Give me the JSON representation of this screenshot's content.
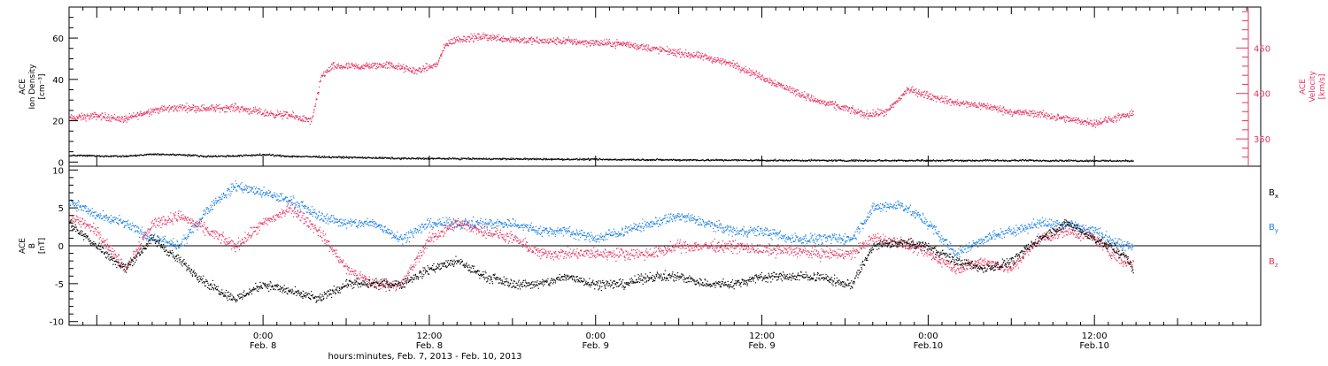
{
  "colors": {
    "bx": "#000000",
    "by": "#1a7ee6",
    "bz": "#e8345e",
    "velocity": "#e8345e",
    "density": "#000000",
    "axis": "#000000"
  },
  "x_axis": {
    "title": "hours:minutes, Feb.  7, 2013 - Feb. 10, 2013",
    "ticks": [
      {
        "hour": 24,
        "time": "0:00",
        "date": "Feb.  8"
      },
      {
        "hour": 36,
        "time": "12:00",
        "date": "Feb.  8"
      },
      {
        "hour": 48,
        "time": "0:00",
        "date": "Feb.  9"
      },
      {
        "hour": 60,
        "time": "12:00",
        "date": "Feb.  9"
      },
      {
        "hour": 72,
        "time": "0:00",
        "date": "Feb.10"
      },
      {
        "hour": 84,
        "time": "12:00",
        "date": "Feb.10"
      }
    ]
  },
  "chart_data": [
    {
      "type": "scatter",
      "panel": "top",
      "x_unit": "hours since Feb. 7 2013 00:00",
      "xlim": [
        10,
        96
      ],
      "data_end_hour": 86.8,
      "ylabel_left": [
        "ACE",
        "Ion Density",
        "[cm⁻³]"
      ],
      "ylim_left": [
        -2,
        75
      ],
      "yticks_left": [
        0,
        20,
        40,
        60
      ],
      "ylabel_right": [
        "ACE",
        "Velocity",
        "[km/s]"
      ],
      "ylim_right": [
        320,
        495
      ],
      "yticks_right": [
        350,
        400,
        450
      ],
      "series": [
        {
          "name": "Velocity",
          "axis": "right",
          "color": "#e8345e",
          "x": [
            10,
            12,
            14,
            16,
            18,
            20,
            22,
            24,
            26,
            27.5,
            28.2,
            29,
            31,
            33,
            35,
            36.5,
            37.2,
            38,
            40,
            42,
            44,
            46,
            48,
            50,
            52,
            54,
            56,
            58,
            60,
            62,
            64,
            66,
            67.5,
            69,
            70.5,
            72,
            74,
            76,
            78,
            80,
            82,
            84,
            86,
            86.8
          ],
          "values": [
            373,
            376,
            372,
            382,
            385,
            384,
            385,
            379,
            376,
            370,
            420,
            430,
            430,
            432,
            425,
            432,
            455,
            460,
            463,
            460,
            458,
            458,
            456,
            455,
            450,
            445,
            440,
            432,
            418,
            405,
            392,
            384,
            377,
            380,
            405,
            398,
            390,
            387,
            380,
            378,
            372,
            368,
            375,
            378
          ]
        },
        {
          "name": "Ion Density",
          "axis": "left",
          "color": "#000000",
          "x": [
            10,
            12,
            14,
            16,
            18,
            20,
            22,
            24,
            26,
            28,
            30,
            34,
            40,
            48,
            56,
            64,
            72,
            80,
            86.8
          ],
          "values": [
            3.5,
            3.2,
            3.0,
            4.0,
            3.8,
            3.0,
            3.2,
            3.8,
            3.0,
            2.8,
            2.5,
            2.0,
            1.8,
            1.5,
            1.2,
            1.0,
            1.0,
            1.0,
            0.8
          ]
        }
      ]
    },
    {
      "type": "scatter",
      "panel": "bottom",
      "x_unit": "hours since Feb. 7 2013 00:00",
      "xlim": [
        10,
        96
      ],
      "data_end_hour": 86.8,
      "ylabel": [
        "ACE",
        "B",
        "[nT]"
      ],
      "ylim": [
        -10.5,
        10.5
      ],
      "yticks": [
        -10,
        -5,
        0,
        5,
        10
      ],
      "legend_position": "right",
      "series": [
        {
          "name": "Bx",
          "color": "#000000",
          "x": [
            10,
            12,
            14,
            16,
            18,
            20,
            22,
            24,
            26,
            28,
            30,
            32,
            34,
            36,
            38,
            40,
            42,
            44,
            46,
            48,
            50,
            52,
            54,
            56,
            58,
            60,
            62,
            64,
            66,
            66.5,
            68,
            70,
            72,
            74,
            76,
            78,
            80,
            82,
            84,
            86,
            86.8
          ],
          "values": [
            3,
            0,
            -3,
            1,
            -2,
            -5,
            -7,
            -5,
            -6,
            -7,
            -5,
            -5,
            -5,
            -3,
            -2,
            -4,
            -5,
            -5,
            -4,
            -5,
            -5,
            -4,
            -4,
            -5,
            -5,
            -4,
            -4,
            -4,
            -5,
            -5,
            0,
            0.5,
            0,
            -2,
            -3,
            -2,
            1,
            3,
            1,
            -1,
            -3
          ]
        },
        {
          "name": "By",
          "color": "#1a7ee6",
          "x": [
            10,
            12,
            14,
            16,
            18,
            20,
            22,
            24,
            26,
            28,
            30,
            32,
            34,
            36,
            38,
            40,
            42,
            44,
            46,
            48,
            50,
            52,
            54,
            56,
            58,
            60,
            62,
            64,
            66,
            66.5,
            68,
            70,
            72,
            74,
            76,
            78,
            80,
            82,
            84,
            86,
            86.8
          ],
          "values": [
            6,
            4,
            3,
            1,
            0,
            5,
            8,
            7,
            6,
            4,
            3,
            3,
            1,
            3,
            3,
            3,
            3,
            2,
            2,
            1,
            2,
            3,
            4,
            3,
            2,
            2,
            1,
            1,
            1,
            1,
            5,
            5.5,
            3,
            -1,
            1,
            2,
            3,
            3,
            2,
            0,
            0
          ]
        },
        {
          "name": "Bz",
          "color": "#e8345e",
          "x": [
            10,
            12,
            14,
            16,
            18,
            20,
            22,
            24,
            26,
            28,
            30,
            32,
            34,
            36,
            38,
            40,
            42,
            44,
            46,
            48,
            50,
            52,
            54,
            56,
            58,
            60,
            62,
            64,
            66,
            66.5,
            68,
            70,
            72,
            74,
            76,
            78,
            80,
            82,
            84,
            86,
            86.8
          ],
          "values": [
            4,
            2,
            -3,
            3,
            4,
            2,
            0,
            3,
            5,
            2,
            -3,
            -5,
            -5,
            1,
            3,
            2,
            1,
            -1,
            -1,
            -1,
            -1,
            -1,
            0,
            0,
            0,
            -0.5,
            -0.5,
            -1,
            -1,
            -1,
            1,
            0.5,
            -1,
            -3,
            -2,
            -3,
            1,
            2,
            1,
            -2,
            -2
          ]
        }
      ]
    }
  ]
}
